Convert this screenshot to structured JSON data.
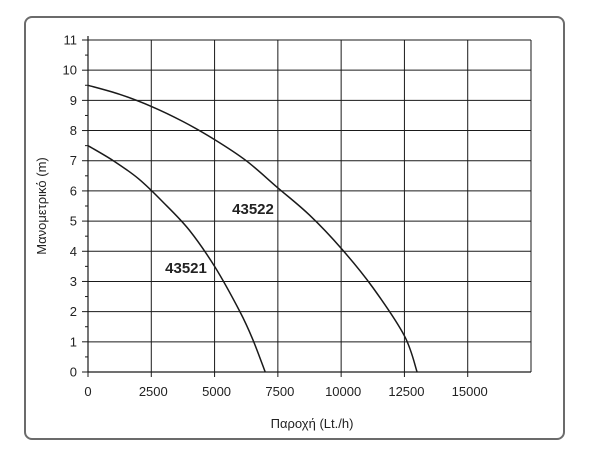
{
  "chart_data": {
    "type": "line",
    "title": "",
    "xlabel": "Παροχή (Lt./h)",
    "ylabel": "Μανομετρικό (m)",
    "xlim": [
      0,
      17500
    ],
    "ylim": [
      0,
      11
    ],
    "xticks": [
      0,
      2500,
      5000,
      7500,
      10000,
      12500,
      15000
    ],
    "yticks": [
      0,
      1,
      2,
      3,
      4,
      5,
      6,
      7,
      8,
      9,
      10,
      11
    ],
    "grid": true,
    "legend": "none",
    "series": [
      {
        "name": "43522",
        "x": [
          0,
          1250,
          2500,
          3750,
          5000,
          6250,
          7500,
          8750,
          10000,
          11250,
          12500,
          13000
        ],
        "y": [
          9.5,
          9.2,
          8.8,
          8.3,
          7.7,
          7.0,
          6.1,
          5.2,
          4.1,
          2.8,
          1.2,
          0
        ]
      },
      {
        "name": "43521",
        "x": [
          0,
          1000,
          2000,
          3000,
          4000,
          5000,
          6000,
          6500,
          7000
        ],
        "y": [
          7.5,
          7.0,
          6.4,
          5.6,
          4.7,
          3.5,
          2.0,
          1.1,
          0
        ]
      }
    ]
  }
}
